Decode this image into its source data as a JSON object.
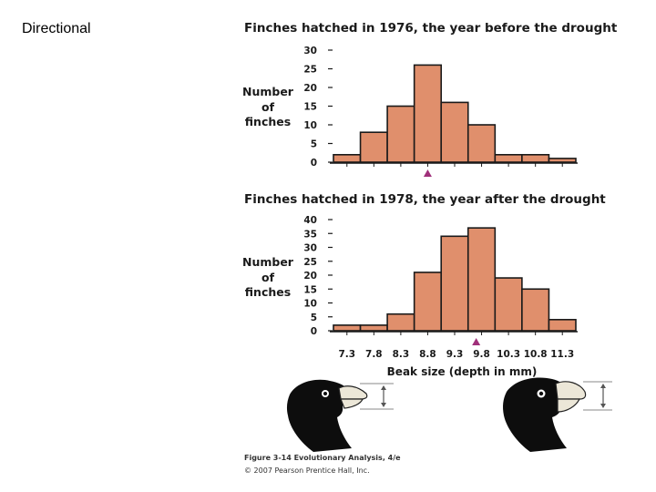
{
  "slide": {
    "title": "Directional"
  },
  "chart_data": [
    {
      "type": "bar",
      "title": "Finches hatched in 1976, the year before the drought",
      "ylabel": [
        "Number",
        "of",
        "finches"
      ],
      "ylim": [
        0,
        30
      ],
      "yticks": [
        0,
        5,
        10,
        15,
        20,
        25,
        30
      ],
      "categories": [
        "7.3",
        "7.8",
        "8.3",
        "8.8",
        "9.3",
        "9.8",
        "10.3",
        "10.8",
        "11.3"
      ],
      "bin_edges": [
        7.05,
        7.55,
        8.05,
        8.55,
        9.05,
        9.55,
        10.05,
        10.55,
        11.05,
        11.55
      ],
      "values": [
        2,
        8,
        15,
        26,
        16,
        10,
        2,
        2,
        1
      ],
      "mean_marker": 8.8,
      "color": "#e08f6c"
    },
    {
      "type": "bar",
      "title": "Finches hatched in 1978, the year after the drought",
      "ylabel": [
        "Number",
        "of",
        "finches"
      ],
      "xlabel": "Beak size (depth in mm)",
      "ylim": [
        0,
        40
      ],
      "yticks": [
        0,
        5,
        10,
        15,
        20,
        25,
        30,
        35,
        40
      ],
      "categories": [
        "7.3",
        "7.8",
        "8.3",
        "8.8",
        "9.3",
        "9.8",
        "10.3",
        "10.8",
        "11.3"
      ],
      "bin_edges": [
        7.05,
        7.55,
        8.05,
        8.55,
        9.05,
        9.55,
        10.05,
        10.55,
        11.05,
        11.55
      ],
      "values": [
        2,
        2,
        6,
        21,
        34,
        37,
        19,
        15,
        4
      ],
      "mean_marker": 9.7,
      "color": "#e08f6c"
    }
  ],
  "caption": {
    "line1": "Figure 3-14 Evolutionary Analysis, 4/e",
    "line2": "© 2007 Pearson Prentice Hall, Inc."
  },
  "colors": {
    "bar_fill": "#e08f6c",
    "marker": "#a0307a",
    "bird": "#0d0d0d",
    "beak": "#ece7d8"
  }
}
